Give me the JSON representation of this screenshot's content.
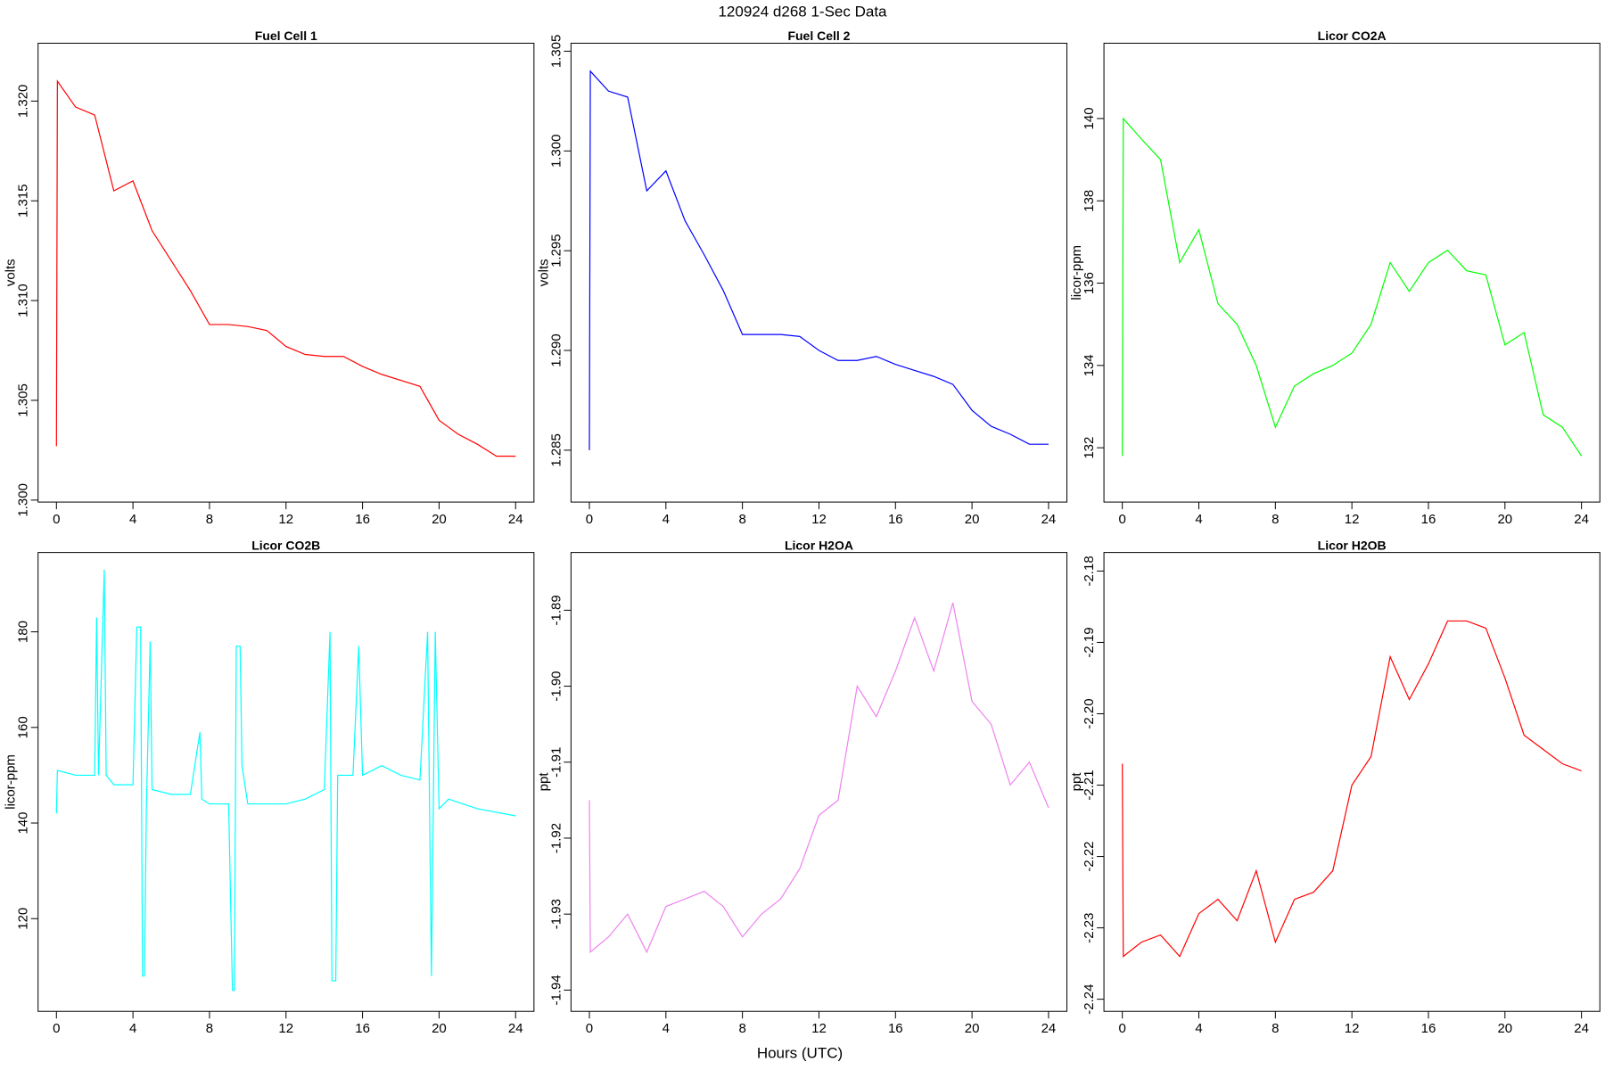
{
  "figure": {
    "title": "120924   d268   1-Sec Data",
    "xlabel": "Hours (UTC)"
  },
  "chart_data": [
    {
      "type": "line",
      "title": "Fuel Cell 1",
      "ylabel": "volts",
      "color": "#ff0000",
      "x": [
        0,
        0.05,
        1,
        2,
        3,
        4,
        5,
        6,
        7,
        8,
        9,
        10,
        11,
        12,
        13,
        14,
        15,
        16,
        17,
        18,
        19,
        20,
        21,
        22,
        23,
        24
      ],
      "values": [
        1.3027,
        1.321,
        1.3197,
        1.3193,
        1.3155,
        1.316,
        1.3135,
        1.312,
        1.3105,
        1.3088,
        1.3088,
        1.3087,
        1.3085,
        1.3077,
        1.3073,
        1.3072,
        1.3072,
        1.3067,
        1.3063,
        1.306,
        1.3057,
        1.304,
        1.3033,
        1.3028,
        1.3022,
        1.3022
      ],
      "xlim": [
        -0.96,
        24.96
      ],
      "xticks": [
        0,
        4,
        8,
        12,
        16,
        20,
        24
      ],
      "ylim": [
        1.2999,
        1.3229
      ],
      "yticks": [
        {
          "value": 1.3,
          "label": "1.300"
        },
        1.305,
        {
          "value": 1.31,
          "label": "1.310"
        },
        1.315,
        {
          "value": 1.32,
          "label": "1.320"
        }
      ]
    },
    {
      "type": "line",
      "title": "Fuel Cell 2",
      "ylabel": "volts",
      "color": "#0000ff",
      "x": [
        0,
        0.05,
        1,
        2,
        3,
        4,
        5,
        6,
        7,
        8,
        9,
        10,
        11,
        12,
        13,
        14,
        15,
        16,
        17,
        18,
        19,
        20,
        21,
        22,
        23,
        24
      ],
      "values": [
        1.285,
        1.304,
        1.303,
        1.3027,
        1.298,
        1.299,
        1.2965,
        1.2948,
        1.293,
        1.2908,
        1.2908,
        1.2908,
        1.2907,
        1.29,
        1.2895,
        1.2895,
        1.2897,
        1.2893,
        1.289,
        1.2887,
        1.2883,
        1.287,
        1.2862,
        1.2858,
        1.2853,
        1.2853
      ],
      "xlim": [
        -0.96,
        24.96
      ],
      "xticks": [
        0,
        4,
        8,
        12,
        16,
        20,
        24
      ],
      "ylim": [
        1.2824,
        1.3054
      ],
      "yticks": [
        1.285,
        {
          "value": 1.29,
          "label": "1.290"
        },
        1.295,
        {
          "value": 1.3,
          "label": "1.300"
        },
        1.305
      ]
    },
    {
      "type": "line",
      "title": "Licor CO2A",
      "ylabel": "licor-ppm",
      "color": "#00ff00",
      "x": [
        0,
        0.05,
        1,
        2,
        3,
        4,
        5,
        6,
        7,
        8,
        9,
        10,
        11,
        12,
        13,
        14,
        15,
        16,
        17,
        18,
        19,
        20,
        21,
        22,
        23,
        24
      ],
      "values": [
        131.8,
        140.0,
        139.5,
        139.0,
        136.5,
        137.3,
        135.5,
        135.0,
        134.0,
        132.5,
        133.5,
        133.8,
        134.0,
        134.3,
        135.0,
        136.5,
        135.8,
        136.5,
        136.8,
        136.3,
        136.2,
        134.5,
        134.8,
        132.8,
        132.5,
        131.8
      ],
      "xlim": [
        -0.96,
        24.96
      ],
      "xticks": [
        0,
        4,
        8,
        12,
        16,
        20,
        24
      ],
      "ylim": [
        130.68,
        141.83
      ],
      "yticks": [
        132,
        134,
        136,
        138,
        140
      ]
    },
    {
      "type": "line",
      "title": "Licor CO2B",
      "ylabel": "licor-ppm",
      "color": "#00ffff",
      "x": [
        0,
        0.05,
        1,
        2,
        2.1,
        2.2,
        2.5,
        2.6,
        3,
        4,
        4.2,
        4.4,
        4.5,
        4.6,
        4.7,
        4.9,
        5,
        6,
        7,
        7.5,
        7.6,
        8,
        9,
        9.2,
        9.3,
        9.4,
        9.6,
        9.7,
        10,
        12,
        13,
        14,
        14.3,
        14.4,
        14.6,
        14.7,
        15.5,
        15.8,
        16,
        17,
        18,
        19,
        19.4,
        19.6,
        19.8,
        20,
        20.5,
        22,
        24
      ],
      "values": [
        142,
        151,
        150,
        150,
        183,
        150,
        193,
        150,
        148,
        148,
        181,
        181,
        108,
        108,
        143,
        178,
        147,
        146,
        146,
        159,
        145,
        144,
        144,
        105,
        105,
        177,
        177,
        152,
        144,
        144,
        145,
        147,
        180,
        107,
        107,
        150,
        150,
        177,
        150,
        152,
        150,
        149,
        180,
        108,
        180,
        143,
        145,
        143,
        141.5
      ],
      "xlim": [
        -0.96,
        24.96
      ],
      "xticks": [
        0,
        4,
        8,
        12,
        16,
        20,
        24
      ],
      "ylim": [
        100.6,
        196.6
      ],
      "yticks": [
        120,
        140,
        160,
        180
      ]
    },
    {
      "type": "line",
      "title": "Licor H2OA",
      "ylabel": "ppt",
      "color": "#ee82ee",
      "x": [
        0,
        0.05,
        1,
        2,
        3,
        4,
        5,
        6,
        7,
        8,
        9,
        10,
        11,
        12,
        13,
        14,
        15,
        16,
        17,
        18,
        19,
        20,
        21,
        22,
        23,
        24
      ],
      "values": [
        -1.915,
        -1.935,
        -1.933,
        -1.93,
        -1.935,
        -1.929,
        -1.928,
        -1.927,
        -1.929,
        -1.933,
        -1.93,
        -1.928,
        -1.924,
        -1.917,
        -1.915,
        -1.9,
        -1.904,
        -1.898,
        -1.891,
        -1.898,
        -1.889,
        -1.902,
        -1.905,
        -1.913,
        -1.91,
        -1.916
      ],
      "xlim": [
        -0.96,
        24.96
      ],
      "xticks": [
        0,
        4,
        8,
        12,
        16,
        20,
        24
      ],
      "ylim": [
        -1.9428,
        -1.8824
      ],
      "yticks": [
        -1.94,
        -1.93,
        -1.92,
        -1.91,
        {
          "value": -1.9,
          "label": "-1.90"
        },
        -1.89
      ]
    },
    {
      "type": "line",
      "title": "Licor H2OB",
      "ylabel": "ppt",
      "color": "#ff0000",
      "x": [
        0,
        0.05,
        1,
        2,
        3,
        4,
        5,
        6,
        7,
        8,
        9,
        10,
        11,
        12,
        13,
        14,
        15,
        16,
        17,
        18,
        19,
        20,
        21,
        22,
        23,
        24
      ],
      "values": [
        -2.207,
        -2.234,
        -2.232,
        -2.231,
        -2.234,
        -2.228,
        -2.226,
        -2.229,
        -2.222,
        -2.232,
        -2.226,
        -2.225,
        -2.222,
        -2.21,
        -2.206,
        -2.192,
        -2.198,
        -2.193,
        -2.187,
        -2.187,
        -2.188,
        -2.195,
        -2.203,
        -2.205,
        -2.207,
        -2.208
      ],
      "xlim": [
        -0.96,
        24.96
      ],
      "xticks": [
        0,
        4,
        8,
        12,
        16,
        20,
        24
      ],
      "ylim": [
        -2.2417,
        -2.1774
      ],
      "yticks": [
        -2.24,
        -2.23,
        -2.22,
        -2.21,
        {
          "value": -2.2,
          "label": "-2.20"
        },
        -2.19,
        -2.18
      ]
    }
  ]
}
